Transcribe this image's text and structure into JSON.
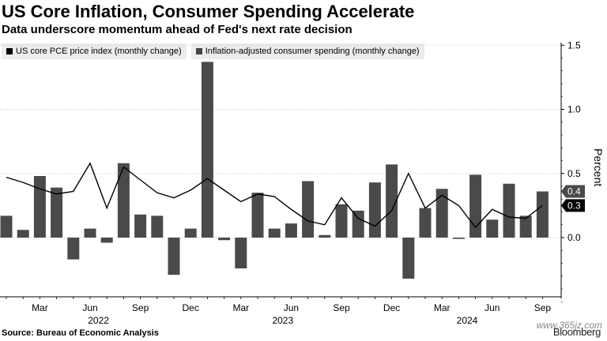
{
  "title": "US Core Inflation, Consumer Spending Accelerate",
  "subtitle": "Data underscore momentum ahead of Fed's next rate decision",
  "legend": {
    "line_label": "US core PCE price index (monthly change)",
    "bar_label": "Inflation-adjusted consumer spending (monthly change)"
  },
  "source": "Source: Bureau of Economic Analysis",
  "brand": "Bloomberg",
  "watermark": "www.365jz.com",
  "colors": {
    "bars": "#4a4a4a",
    "line": "#000000",
    "label_box_bar": "#4a4a4a",
    "label_box_line": "#000000"
  },
  "chart_data": {
    "type": "bar+line",
    "ylabel": "Percent",
    "ylim": [
      -0.55,
      1.55
    ],
    "yticks": [
      0.0,
      0.5,
      1.0,
      1.5
    ],
    "ytick_labels": [
      "0.0",
      "0.5",
      "1.0",
      "1.5"
    ],
    "months": [
      "Jan 2022",
      "Feb 2022",
      "Mar 2022",
      "Apr 2022",
      "May 2022",
      "Jun 2022",
      "Jul 2022",
      "Aug 2022",
      "Sep 2022",
      "Oct 2022",
      "Nov 2022",
      "Dec 2022",
      "Jan 2023",
      "Feb 2023",
      "Mar 2023",
      "Apr 2023",
      "May 2023",
      "Jun 2023",
      "Jul 2023",
      "Aug 2023",
      "Sep 2023",
      "Oct 2023",
      "Nov 2023",
      "Dec 2023",
      "Jan 2024",
      "Feb 2024",
      "Mar 2024",
      "Apr 2024",
      "May 2024",
      "Jun 2024",
      "Jul 2024",
      "Aug 2024",
      "Sep 2024"
    ],
    "x_tick_labels": [
      {
        "index": 2,
        "label": "Mar"
      },
      {
        "index": 5,
        "label": "Jun"
      },
      {
        "index": 8,
        "label": "Sep"
      },
      {
        "index": 11,
        "label": "Dec"
      },
      {
        "index": 14,
        "label": "Mar"
      },
      {
        "index": 17,
        "label": "Jun"
      },
      {
        "index": 20,
        "label": "Sep"
      },
      {
        "index": 23,
        "label": "Dec"
      },
      {
        "index": 26,
        "label": "Mar"
      },
      {
        "index": 29,
        "label": "Jun"
      },
      {
        "index": 32,
        "label": "Sep"
      }
    ],
    "year_labels": [
      {
        "index": 5.5,
        "label": "2022"
      },
      {
        "index": 16.5,
        "label": "2023"
      },
      {
        "index": 27.5,
        "label": "2024"
      }
    ],
    "series": [
      {
        "name": "Inflation-adjusted consumer spending (monthly change)",
        "kind": "bar",
        "values": [
          0.17,
          0.06,
          0.48,
          0.39,
          -0.17,
          0.07,
          -0.04,
          0.58,
          0.18,
          0.17,
          -0.29,
          0.07,
          1.37,
          -0.02,
          -0.24,
          0.35,
          0.07,
          0.11,
          0.44,
          0.02,
          0.26,
          0.21,
          0.43,
          0.57,
          -0.32,
          0.23,
          0.38,
          -0.01,
          0.49,
          0.14,
          0.42,
          0.17,
          0.36
        ]
      },
      {
        "name": "US core PCE price index (monthly change)",
        "kind": "line",
        "values": [
          0.47,
          0.43,
          0.38,
          0.34,
          0.36,
          0.58,
          0.23,
          0.55,
          0.45,
          0.35,
          0.31,
          0.37,
          0.46,
          0.37,
          0.28,
          0.34,
          0.32,
          0.22,
          0.13,
          0.1,
          0.31,
          0.15,
          0.09,
          0.21,
          0.5,
          0.23,
          0.33,
          0.25,
          0.08,
          0.22,
          0.16,
          0.15,
          0.25
        ]
      }
    ],
    "end_labels": [
      {
        "series": "bar",
        "text": "0.4"
      },
      {
        "series": "line",
        "text": "0.3"
      }
    ]
  }
}
